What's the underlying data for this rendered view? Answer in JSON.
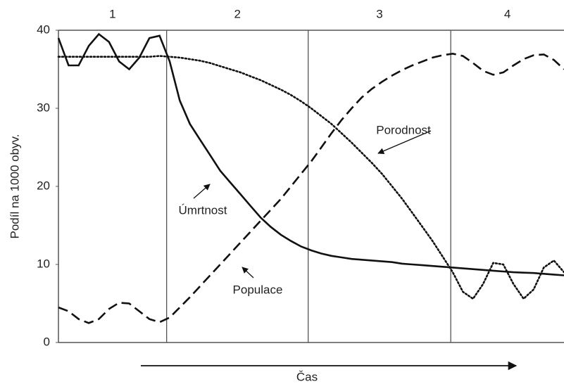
{
  "chart_data": {
    "type": "line",
    "ylabel": "Podíl na 1000 obyv.",
    "xlabel": "Čas",
    "phases": [
      "1",
      "2",
      "3",
      "4"
    ],
    "phase_bounds": [
      21.4,
      49.4,
      77.6
    ],
    "xlim": [
      0,
      100
    ],
    "ylim": [
      0,
      40
    ],
    "yticks": [
      0,
      10,
      20,
      30,
      40
    ],
    "x": [
      0,
      2,
      4,
      6,
      8,
      10,
      12,
      14,
      16,
      18,
      20,
      22,
      24,
      26,
      28,
      30,
      32,
      34,
      36,
      38,
      40,
      42,
      44,
      46,
      48,
      50,
      52,
      54,
      56,
      58,
      60,
      62,
      64,
      66,
      68,
      70,
      72,
      74,
      76,
      78,
      80,
      82,
      84,
      86,
      88,
      90,
      92,
      94,
      96,
      98,
      100
    ],
    "series": [
      {
        "name": "Úmrtnost",
        "color": "#111111",
        "style": "solid",
        "values": [
          39,
          35.5,
          35.5,
          38,
          39.5,
          38.5,
          36,
          35,
          36.5,
          39,
          39.3,
          36,
          31,
          28,
          26,
          24,
          22,
          20.5,
          19,
          17.5,
          16,
          14.8,
          13.8,
          13,
          12.3,
          11.8,
          11.4,
          11.1,
          10.9,
          10.7,
          10.6,
          10.5,
          10.4,
          10.3,
          10.1,
          10,
          9.9,
          9.8,
          9.7,
          9.6,
          9.5,
          9.4,
          9.3,
          9.2,
          9.1,
          9,
          8.95,
          8.9,
          8.8,
          8.7,
          8.6
        ]
      },
      {
        "name": "Populace",
        "color": "#111111",
        "style": "dashed",
        "values": [
          4.5,
          4,
          3,
          2.5,
          3,
          4.3,
          5.1,
          5,
          4,
          3,
          2.6,
          3.2,
          4.5,
          5.8,
          7.2,
          8.6,
          10,
          11.4,
          12.8,
          14.2,
          15.6,
          17,
          18.4,
          20,
          21.6,
          23.2,
          25,
          26.8,
          28.5,
          30,
          31.4,
          32.5,
          33.4,
          34.2,
          34.9,
          35.5,
          36,
          36.5,
          36.8,
          37,
          36.7,
          35.8,
          34.8,
          34.3,
          34.6,
          35.5,
          36.3,
          36.8,
          36.9,
          36.2,
          35
        ]
      },
      {
        "name": "Porodnost",
        "color": "#111111",
        "style": "dotted",
        "values": [
          36.6,
          36.6,
          36.6,
          36.6,
          36.6,
          36.6,
          36.6,
          36.6,
          36.6,
          36.6,
          36.7,
          36.6,
          36.5,
          36.3,
          36.1,
          35.8,
          35.4,
          35,
          34.6,
          34.1,
          33.6,
          33,
          32.4,
          31.7,
          30.9,
          30,
          29,
          28,
          26.8,
          25.6,
          24.3,
          23,
          21.6,
          20,
          18.4,
          16.6,
          14.8,
          13,
          11,
          9,
          6.5,
          5.6,
          7.5,
          10.2,
          10,
          7.5,
          5.6,
          6.8,
          9.6,
          10.5,
          9
        ]
      }
    ]
  }
}
